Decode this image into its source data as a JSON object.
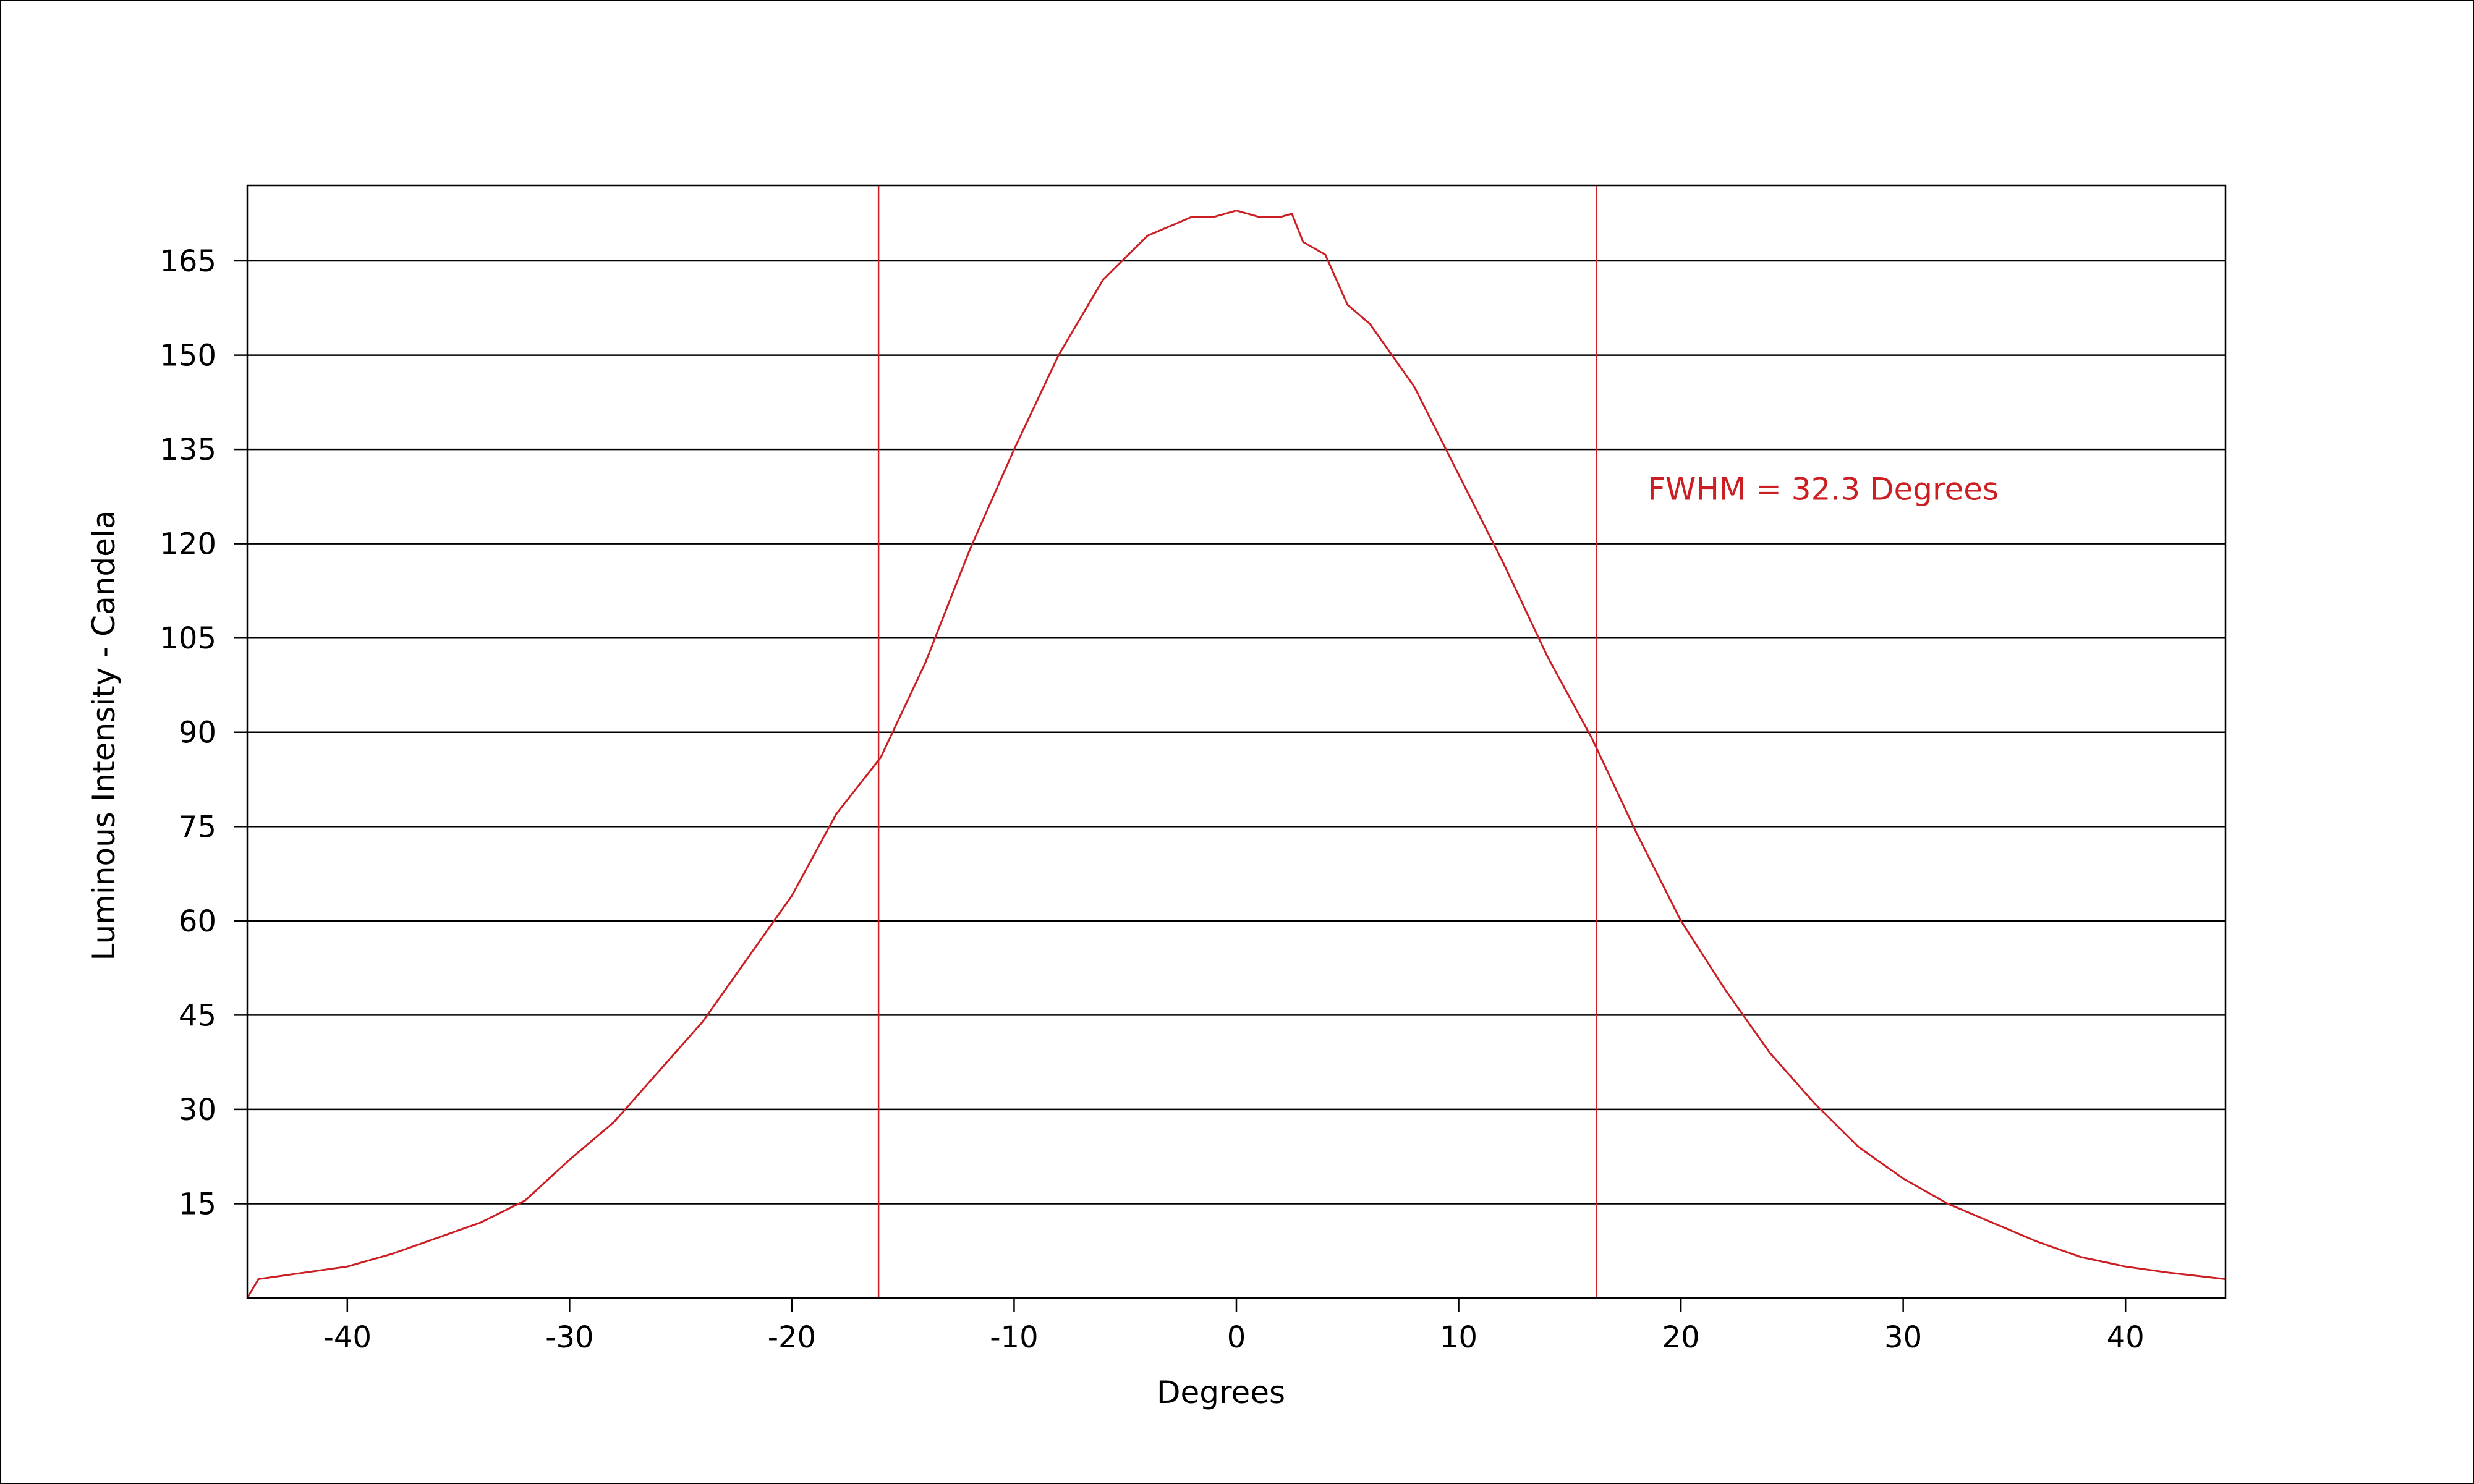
{
  "chart_data": {
    "type": "line",
    "title": "",
    "xlabel": "Degrees",
    "ylabel": "Luminous Intensity - Candela",
    "xlim": [
      -44.5,
      44.5
    ],
    "ylim": [
      0,
      177
    ],
    "x_ticks": [
      -40,
      -30,
      -20,
      -10,
      0,
      10,
      20,
      30,
      40
    ],
    "y_ticks": [
      15,
      30,
      45,
      60,
      75,
      90,
      105,
      120,
      135,
      150,
      165
    ],
    "grid": "horizontal",
    "colors": {
      "line": "#cc1f24",
      "grid": "#000000",
      "axes": "#000000"
    },
    "series": [
      {
        "color": "#cc1f24",
        "x": [
          -44.5,
          -44,
          -42,
          -40,
          -38,
          -36,
          -34,
          -32,
          -30,
          -28,
          -26,
          -24,
          -22,
          -20,
          -18,
          -16,
          -14,
          -12,
          -10,
          -8,
          -6,
          -4,
          -2,
          -1,
          0,
          1,
          2,
          2.5,
          3,
          4,
          5,
          6,
          8,
          10,
          12,
          14,
          16,
          18,
          20,
          22,
          24,
          26,
          28,
          30,
          32,
          34,
          36,
          38,
          40,
          42,
          44.5
        ],
        "y": [
          0,
          3,
          4,
          5,
          7,
          9.5,
          12,
          15.5,
          22,
          28,
          36,
          44,
          54,
          64,
          77,
          86,
          101,
          119,
          135,
          150,
          162,
          169,
          172,
          172,
          173,
          172,
          172,
          172.5,
          168,
          166,
          158,
          155,
          145,
          131,
          117,
          102,
          89,
          74,
          60,
          49,
          39,
          31,
          24,
          19,
          15,
          12,
          9,
          6.5,
          5,
          4,
          3
        ]
      }
    ],
    "vertical_markers": [
      -16.1,
      16.2
    ],
    "annotation": {
      "text": "FWHM = 32.3 Degrees",
      "x": 18.5,
      "y": 127,
      "color": "#cc1f24"
    }
  }
}
